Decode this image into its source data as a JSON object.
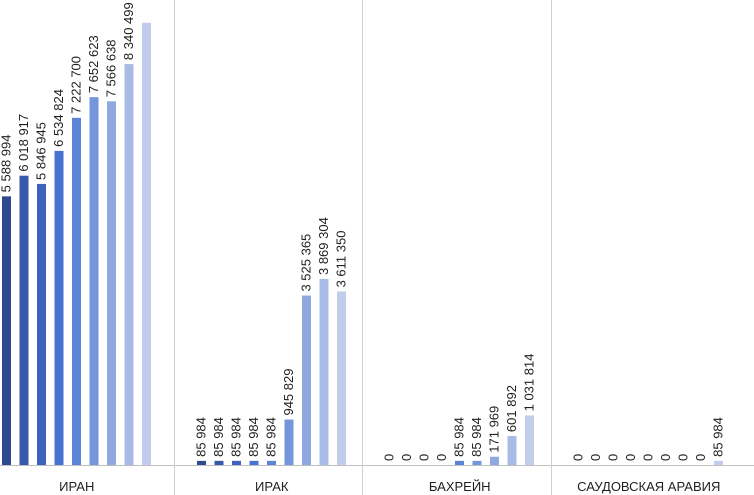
{
  "chart_data": {
    "type": "bar",
    "title": "",
    "xlabel": "",
    "ylabel": "",
    "ylim": [
      0,
      8900000
    ],
    "grid": false,
    "legend": "none",
    "bar_colors": [
      "#2e4b8f",
      "#3558a8",
      "#3d63bf",
      "#4672d0",
      "#5c84d6",
      "#7596da",
      "#8fa8e0",
      "#a8bbe6",
      "#c2cdec"
    ],
    "groups": [
      {
        "category": "ИРАН",
        "values": [
          5588994,
          6018917,
          5846945,
          6534824,
          7222700,
          7652623,
          7566638,
          8340499,
          9200000
        ],
        "labels": [
          "5 588 994",
          "6 018 917",
          "5 846 945",
          "6 534 824",
          "7 222 700",
          "7 652 623",
          "7 566 638",
          "8 340 499",
          ""
        ]
      },
      {
        "category": "ИРАК",
        "values": [
          85984,
          85984,
          85984,
          85984,
          85984,
          945829,
          3525365,
          3869304,
          3611350
        ],
        "labels": [
          "85 984",
          "85 984",
          "85 984",
          "85 984",
          "85 984",
          "945 829",
          "3 525 365",
          "3 869 304",
          "3 611 350"
        ]
      },
      {
        "category": "БАХРЕЙН",
        "values": [
          0,
          0,
          0,
          0,
          85984,
          85984,
          171969,
          601892,
          1031814
        ],
        "labels": [
          "0",
          "0",
          "0",
          "0",
          "85 984",
          "85 984",
          "171 969",
          "601 892",
          "1 031 814"
        ]
      },
      {
        "category": "САУДОВСКАЯ АРАВИЯ",
        "values": [
          0,
          0,
          0,
          0,
          0,
          0,
          0,
          0,
          85984
        ],
        "labels": [
          "0",
          "0",
          "0",
          "0",
          "0",
          "0",
          "0",
          "0",
          "85 984"
        ]
      }
    ]
  }
}
